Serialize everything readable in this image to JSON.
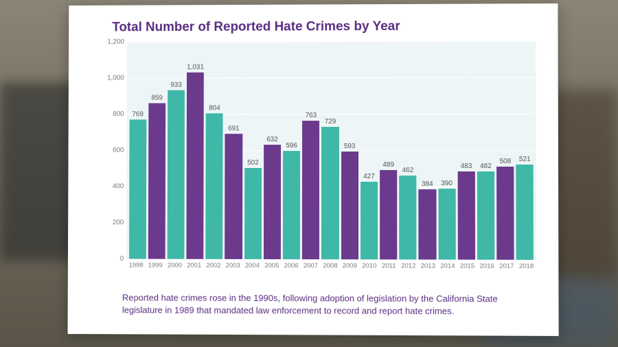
{
  "title": "Total Number of Reported Hate Crimes by Year",
  "caption_line1": "Reported hate crimes rose in the 1990s, following adoption of legislation by the California State",
  "caption_line2": "legislature in 1989 that mandated law enforcement to record and report hate crimes.",
  "chart": {
    "type": "bar",
    "ylim": [
      0,
      1200
    ],
    "ytick_step": 200,
    "yticks": [
      0,
      200,
      400,
      600,
      800,
      1000,
      1200
    ],
    "ytick_formatted": [
      "0",
      "200",
      "400",
      "600",
      "800",
      "1,000",
      "1,200"
    ],
    "background_color": "#ffffff",
    "plot_bg_color": "#eef5f7",
    "grid_color": "#ffffff",
    "title_color": "#5a2d82",
    "caption_color": "#5a2d82",
    "axis_text_color": "#7a7a7a",
    "value_label_color": "#555555",
    "title_fontsize": 19,
    "axis_fontsize": 10,
    "value_fontsize": 10,
    "caption_fontsize": 13,
    "bar_colors_alternating": [
      "#3fb8a8",
      "#6b3a8c"
    ],
    "bar_width_ratio": 0.85,
    "categories": [
      "1998",
      "1999",
      "2000",
      "2001",
      "2002",
      "2003",
      "2004",
      "2005",
      "2006",
      "2007",
      "2008",
      "2009",
      "2010",
      "2011",
      "2012",
      "2013",
      "2014",
      "2015",
      "2016",
      "2017",
      "2018"
    ],
    "values": [
      769,
      859,
      933,
      1031,
      804,
      691,
      502,
      632,
      596,
      763,
      729,
      593,
      427,
      489,
      462,
      384,
      390,
      483,
      482,
      508,
      521
    ],
    "bar_colors": [
      "#3fb8a8",
      "#6b3a8c",
      "#3fb8a8",
      "#6b3a8c",
      "#3fb8a8",
      "#6b3a8c",
      "#3fb8a8",
      "#6b3a8c",
      "#3fb8a8",
      "#6b3a8c",
      "#3fb8a8",
      "#6b3a8c",
      "#3fb8a8",
      "#6b3a8c",
      "#3fb8a8",
      "#6b3a8c",
      "#3fb8a8",
      "#6b3a8c",
      "#3fb8a8",
      "#6b3a8c",
      "#3fb8a8"
    ],
    "value_labels": [
      "769",
      "859",
      "933",
      "1,031",
      "804",
      "691",
      "502",
      "632",
      "596",
      "763",
      "729",
      "593",
      "427",
      "489",
      "462",
      "384",
      "390",
      "483",
      "482",
      "508",
      "521"
    ]
  }
}
